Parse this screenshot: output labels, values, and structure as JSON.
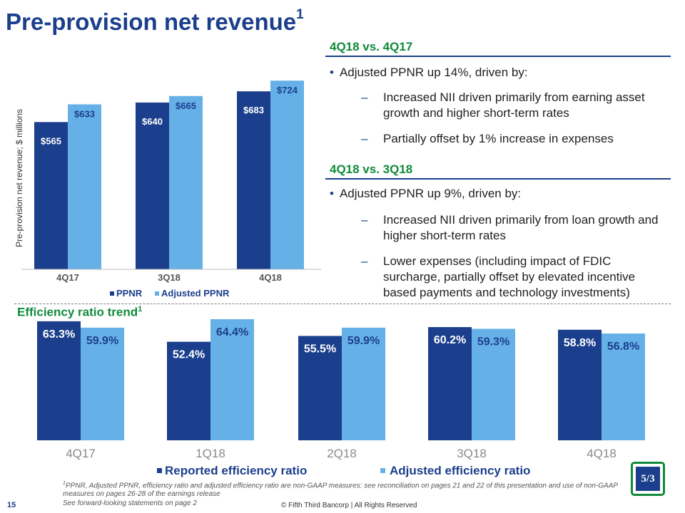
{
  "title": "Pre-provision net revenue",
  "title_sup": "1",
  "right_panel": {
    "sec1": {
      "heading": "4Q18 vs. 4Q17",
      "bullet": "Adjusted PPNR up 14%, driven by:",
      "subs": [
        "Increased NII driven primarily from earning asset growth and higher short-term rates",
        "Partially offset by 1% increase in expenses"
      ]
    },
    "sec2": {
      "heading": "4Q18 vs. 3Q18",
      "bullet": "Adjusted PPNR up 9%, driven by:",
      "subs": [
        "Increased NII driven primarily from loan growth and higher short-term rates",
        "Lower expenses (including impact of FDIC surcharge, partially offset by elevated incentive based payments and technology investments)"
      ]
    },
    "dash_glyph": "–",
    "bullet_glyph": "•"
  },
  "efficiency_title": "Efficiency ratio trend",
  "efficiency_sup": "1",
  "colors": {
    "dark": "#1b3f8c",
    "light": "#66b0e8",
    "green": "#0f8a3a"
  },
  "chart_data": [
    {
      "type": "bar",
      "title": "",
      "ylabel": "Pre-provision net revenue; $ millions",
      "categories": [
        "4Q17",
        "3Q18",
        "4Q18"
      ],
      "series": [
        {
          "name": "PPNR",
          "values": [
            565,
            640,
            683
          ],
          "labels": [
            "$565",
            "$640",
            "$683"
          ]
        },
        {
          "name": "Adjusted PPNR",
          "values": [
            633,
            665,
            724
          ],
          "labels": [
            "$633",
            "$665",
            "$724"
          ]
        }
      ],
      "ylim": [
        0,
        760
      ],
      "legend": "bottom"
    },
    {
      "type": "bar",
      "title": "Efficiency ratio trend",
      "categories": [
        "4Q17",
        "1Q18",
        "2Q18",
        "3Q18",
        "4Q18"
      ],
      "series": [
        {
          "name": "Reported efficiency ratio",
          "values": [
            63.3,
            52.4,
            55.5,
            60.2,
            58.8
          ],
          "labels": [
            "63.3%",
            "52.4%",
            "55.5%",
            "60.2%",
            "58.8%"
          ]
        },
        {
          "name": "Adjusted efficiency ratio",
          "values": [
            59.9,
            64.4,
            59.9,
            59.3,
            56.8
          ],
          "labels": [
            "59.9%",
            "64.4%",
            "59.9%",
            "59.3%",
            "56.8%"
          ]
        }
      ],
      "ylim": [
        0,
        66
      ],
      "legend": "bottom"
    }
  ],
  "footnote_sup": "1",
  "footnote": "PPNR, Adjusted PPNR, efficiency ratio and adjusted efficiency ratio are non-GAAP measures: see reconciliation on pages 21 and 22 of this presentation and use of non-GAAP measures on pages 26-28 of the earnings release",
  "forward_looking": "See forward-looking statements on page 2",
  "copyright": "© Fifth Third Bancorp | All Rights Reserved",
  "page_number": "15",
  "logo_text": "5/3"
}
